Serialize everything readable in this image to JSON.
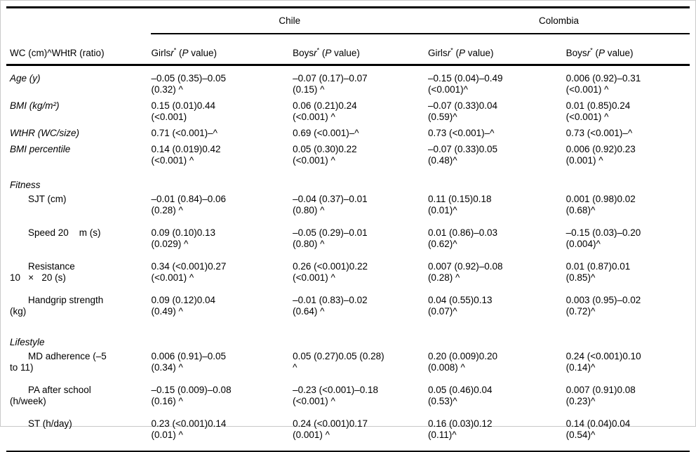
{
  "table": {
    "corner_header": "WC (cm)^WHtR (ratio)",
    "groups": [
      {
        "label": "Chile"
      },
      {
        "label": "Colombia"
      }
    ],
    "subheaders": [
      {
        "sex": "Girls"
      },
      {
        "sex": "Boys"
      },
      {
        "sex": "Girls"
      },
      {
        "sex": "Boys"
      }
    ],
    "subheader_parts": {
      "r": "r",
      "star": "*",
      "pre": " (",
      "p": "P",
      "post": " value)"
    },
    "rows": [
      {
        "type": "data",
        "group": "top",
        "style": "italic",
        "label_lines": [
          "Age (y)"
        ],
        "cells": [
          [
            "–0.05 (0.35)–0.05",
            "(0.32) ^"
          ],
          [
            "–0.07 (0.17)–0.07",
            "(0.15) ^"
          ],
          [
            "–0.15 (0.04)–0.49",
            "(<0.001)^"
          ],
          [
            "0.006 (0.92)–0.31",
            "(<0.001) ^"
          ]
        ]
      },
      {
        "type": "data",
        "group": "top",
        "style": "italic",
        "label_lines": [
          "BMI (kg/m²)"
        ],
        "cells": [
          [
            "0.15 (0.01)0.44",
            "(<0.001)"
          ],
          [
            "0.06 (0.21)0.24",
            "(<0.001) ^"
          ],
          [
            "–0.07 (0.33)0.04",
            "(0.59)^"
          ],
          [
            "0.01 (0.85)0.24",
            "(<0.001) ^"
          ]
        ]
      },
      {
        "type": "data",
        "group": "top",
        "style": "italic",
        "single": true,
        "label_lines": [
          "WtHR (WC/size)"
        ],
        "cells": [
          [
            "0.71 (<0.001)–^"
          ],
          [
            "0.69 (<0.001)–^"
          ],
          [
            "0.73 (<0.001)–^"
          ],
          [
            "0.73 (<0.001)–^"
          ]
        ]
      },
      {
        "type": "data",
        "group": "top",
        "style": "italic",
        "label_lines": [
          "BMI percentile"
        ],
        "cells": [
          [
            "0.14 (0.019)0.42",
            "(<0.001) ^"
          ],
          [
            "0.05 (0.30)0.22",
            "(<0.001) ^"
          ],
          [
            "–0.07 (0.33)0.05",
            "(0.48)^"
          ],
          [
            "0.006 (0.92)0.23",
            "(0.001) ^"
          ]
        ]
      },
      {
        "type": "section",
        "group": "fitness",
        "label_lines": [
          "Fitness"
        ]
      },
      {
        "type": "data",
        "group": "fitness",
        "style": "sub",
        "label_lines": [
          "SJT (cm)"
        ],
        "cells": [
          [
            "–0.01 (0.84)–0.06",
            "(0.28) ^"
          ],
          [
            "–0.04 (0.37)–0.01",
            "(0.80) ^"
          ],
          [
            "0.11 (0.15)0.18",
            "(0.01)^"
          ],
          [
            "0.001 (0.98)0.02",
            "(0.68)^"
          ]
        ]
      },
      {
        "type": "data",
        "group": "fitness",
        "style": "sub",
        "label_lines": [
          "Speed 20    m (s)"
        ],
        "cells": [
          [
            "0.09 (0.10)0.13",
            "(0.029) ^"
          ],
          [
            "–0.05 (0.29)–0.01",
            "(0.80) ^"
          ],
          [
            "0.01 (0.86)–0.03",
            "(0.62)^"
          ],
          [
            "–0.15 (0.03)–0.20",
            "(0.004)^"
          ]
        ]
      },
      {
        "type": "data",
        "group": "fitness",
        "style": "sub",
        "label_lines": [
          "Resistance",
          "10   ×   20 (s)"
        ],
        "cells": [
          [
            "0.34 (<0.001)0.27",
            "(<0.001) ^"
          ],
          [
            "0.26 (<0.001)0.22",
            "(<0.001) ^"
          ],
          [
            "0.007 (0.92)–0.08",
            "(0.28) ^"
          ],
          [
            "0.01 (0.87)0.01",
            "(0.85)^"
          ]
        ]
      },
      {
        "type": "data",
        "group": "fitness",
        "style": "sub",
        "label_lines": [
          "Handgrip strength",
          "(kg)"
        ],
        "cells": [
          [
            "0.09 (0.12)0.04",
            "(0.49) ^"
          ],
          [
            "–0.01 (0.83)–0.02",
            "(0.64) ^"
          ],
          [
            "0.04 (0.55)0.13",
            "(0.07)^"
          ],
          [
            "0.003 (0.95)–0.02",
            "(0.72)^"
          ]
        ]
      },
      {
        "type": "section",
        "group": "lifestyle",
        "label_lines": [
          "Lifestyle"
        ]
      },
      {
        "type": "data",
        "group": "lifestyle",
        "style": "sub",
        "label_lines": [
          "MD adherence (–5",
          "to 11)"
        ],
        "cells": [
          [
            "0.006 (0.91)–0.05",
            "(0.34) ^"
          ],
          [
            "0.05 (0.27)0.05 (0.28)",
            "^"
          ],
          [
            "0.20 (0.009)0.20",
            "(0.008) ^"
          ],
          [
            "0.24 (<0.001)0.10",
            "(0.14)^"
          ]
        ]
      },
      {
        "type": "data",
        "group": "lifestyle",
        "style": "sub",
        "label_lines": [
          "PA after school",
          "(h/week)"
        ],
        "cells": [
          [
            "–0.15 (0.009)–0.08",
            "(0.16) ^"
          ],
          [
            "–0.23 (<0.001)–0.18",
            "(<0.001) ^"
          ],
          [
            "0.05 (0.46)0.04",
            "(0.53)^"
          ],
          [
            "0.007 (0.91)0.08",
            "(0.23)^"
          ]
        ]
      },
      {
        "type": "data",
        "group": "lifestyle",
        "style": "sub",
        "label_lines": [
          "ST (h/day)"
        ],
        "cells": [
          [
            "0.23 (<0.001)0.14",
            "(0.01) ^"
          ],
          [
            "0.24 (<0.001)0.17",
            "(0.001) ^"
          ],
          [
            "0.16 (0.03)0.12",
            "(0.11)^"
          ],
          [
            "0.14 (0.04)0.04",
            "(0.54)^"
          ]
        ]
      }
    ]
  }
}
